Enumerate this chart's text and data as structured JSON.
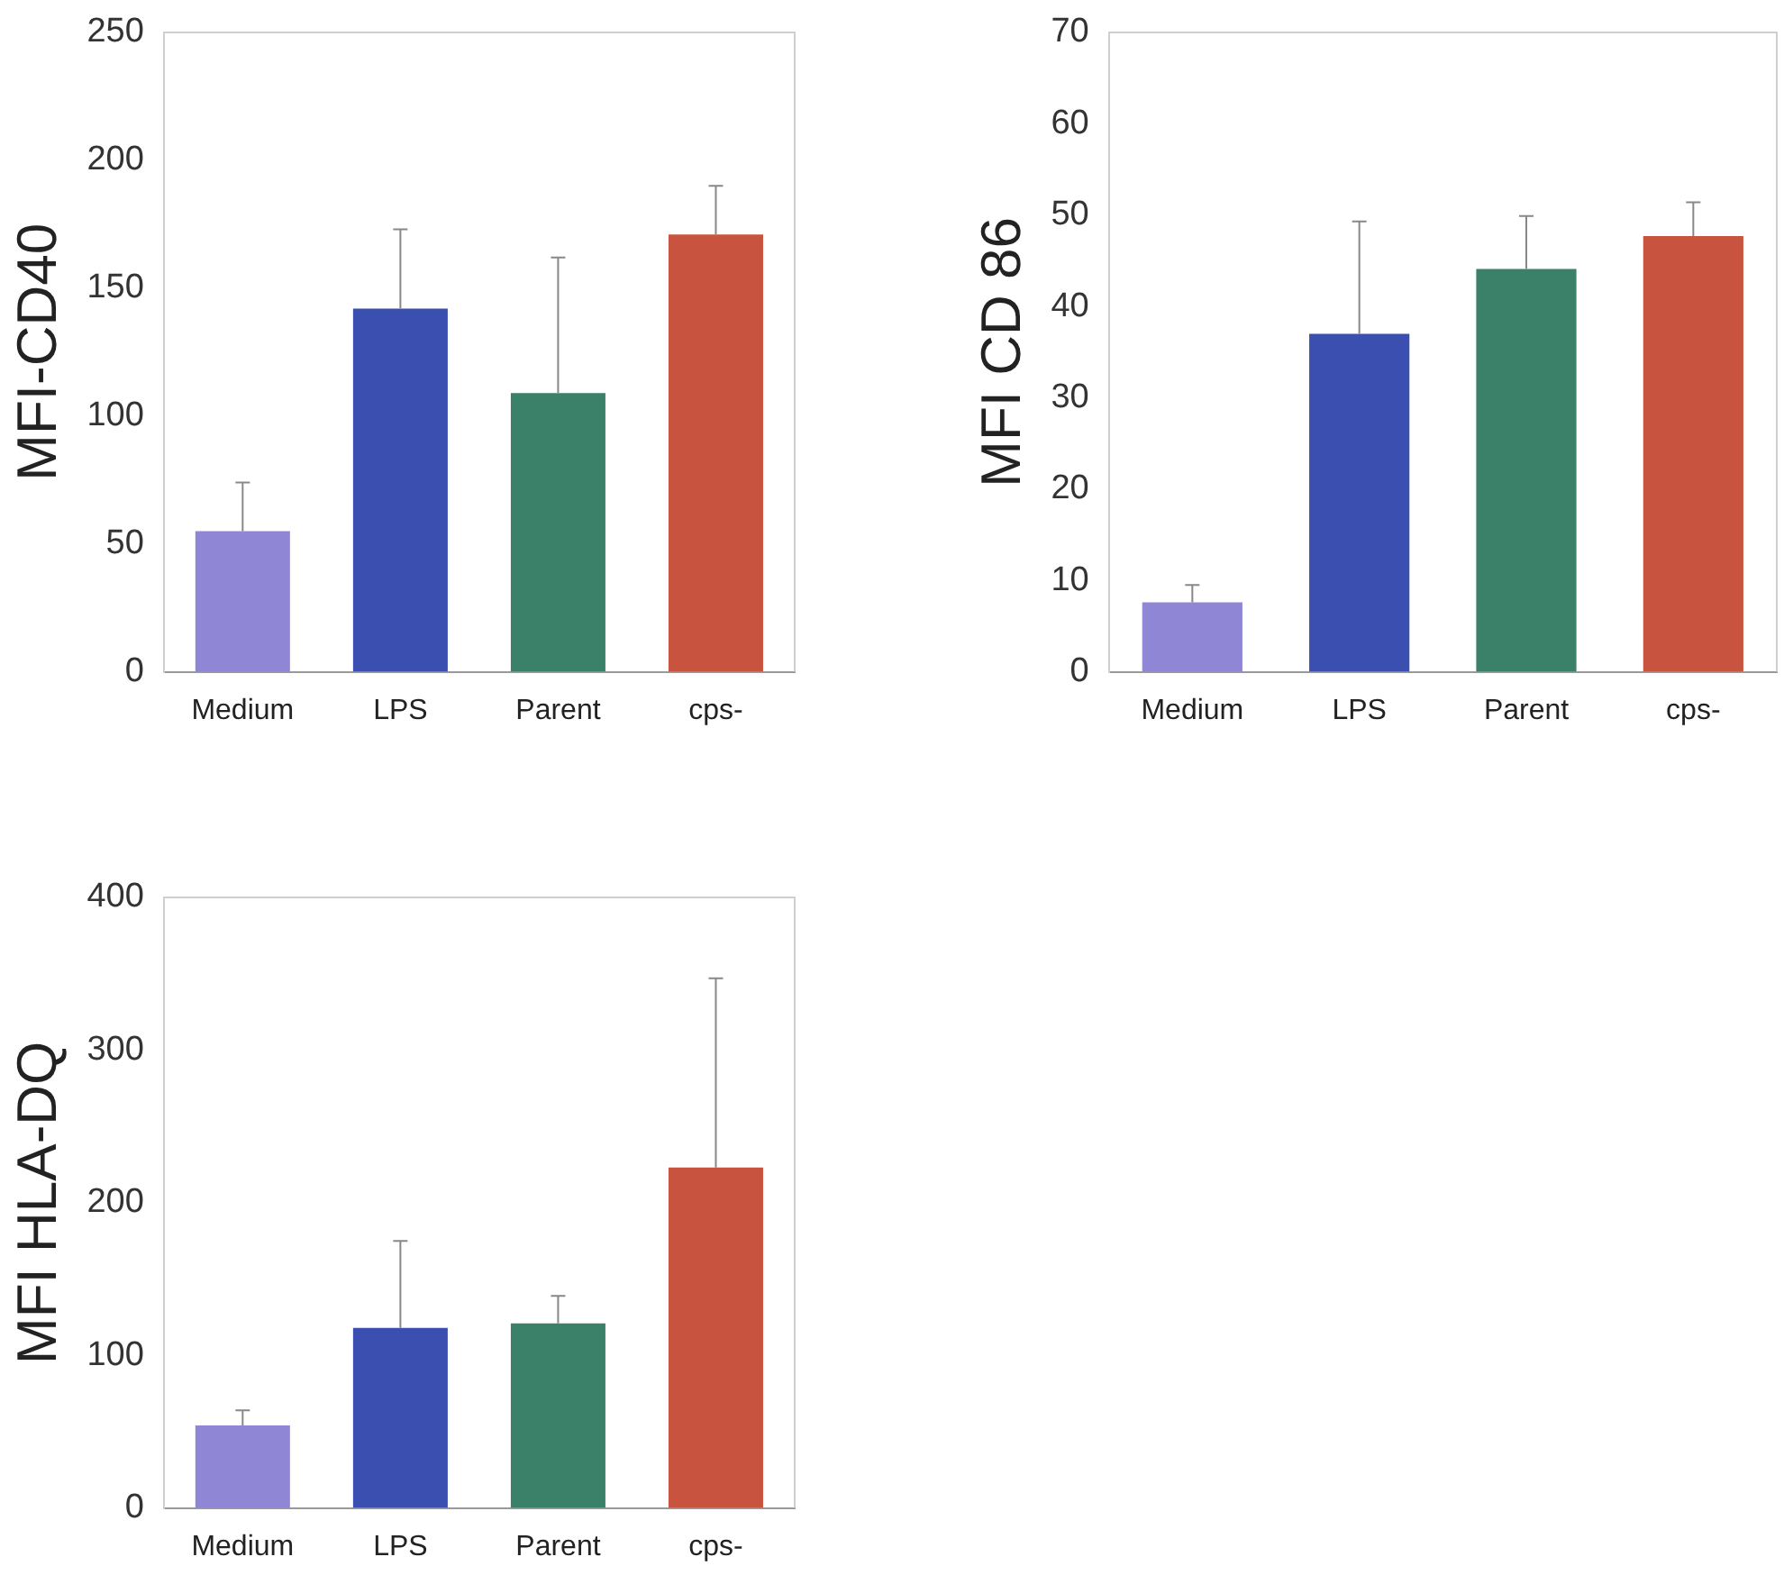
{
  "chart_data": [
    {
      "type": "bar",
      "ylabel": "MFI-CD40",
      "categories": [
        "Medium",
        "LPS",
        "Parent",
        "cps-"
      ],
      "values": [
        55,
        142,
        109,
        171
      ],
      "colors": [
        "#8f86d6",
        "#3a4fb0",
        "#3b8068",
        "#c8543f"
      ],
      "errors": [
        [
          55,
          74
        ],
        [
          142,
          173
        ],
        [
          109,
          162
        ],
        [
          171,
          190
        ]
      ],
      "ylim": [
        0,
        250
      ],
      "yticks": [
        0,
        50,
        100,
        150,
        200,
        250
      ]
    },
    {
      "type": "bar",
      "ylabel": "MFI CD 86",
      "categories": [
        "Medium",
        "LPS",
        "Parent",
        "cps-"
      ],
      "values": [
        7.6,
        37,
        44.1,
        47.7
      ],
      "colors": [
        "#8f86d6",
        "#3a4fb0",
        "#3b8068",
        "#c8543f"
      ],
      "errors": [
        [
          7.6,
          9.5
        ],
        [
          37,
          49.3
        ],
        [
          44.1,
          49.9
        ],
        [
          47.7,
          51.4
        ]
      ],
      "ylim": [
        0,
        70
      ],
      "yticks": [
        0,
        10,
        20,
        30,
        40,
        50,
        60,
        70
      ]
    },
    {
      "type": "bar",
      "ylabel": "MFI HLA-DQ",
      "categories": [
        "Medium",
        "LPS",
        "Parent",
        "cps-"
      ],
      "values": [
        54,
        118,
        121,
        223
      ],
      "colors": [
        "#8f86d6",
        "#3a4fb0",
        "#3b8068",
        "#c8543f"
      ],
      "errors": [
        [
          54,
          64
        ],
        [
          118,
          175
        ],
        [
          121,
          139
        ],
        [
          223,
          347
        ]
      ],
      "ylim": [
        0,
        400
      ],
      "yticks": [
        0,
        100,
        200,
        300,
        400
      ]
    }
  ]
}
